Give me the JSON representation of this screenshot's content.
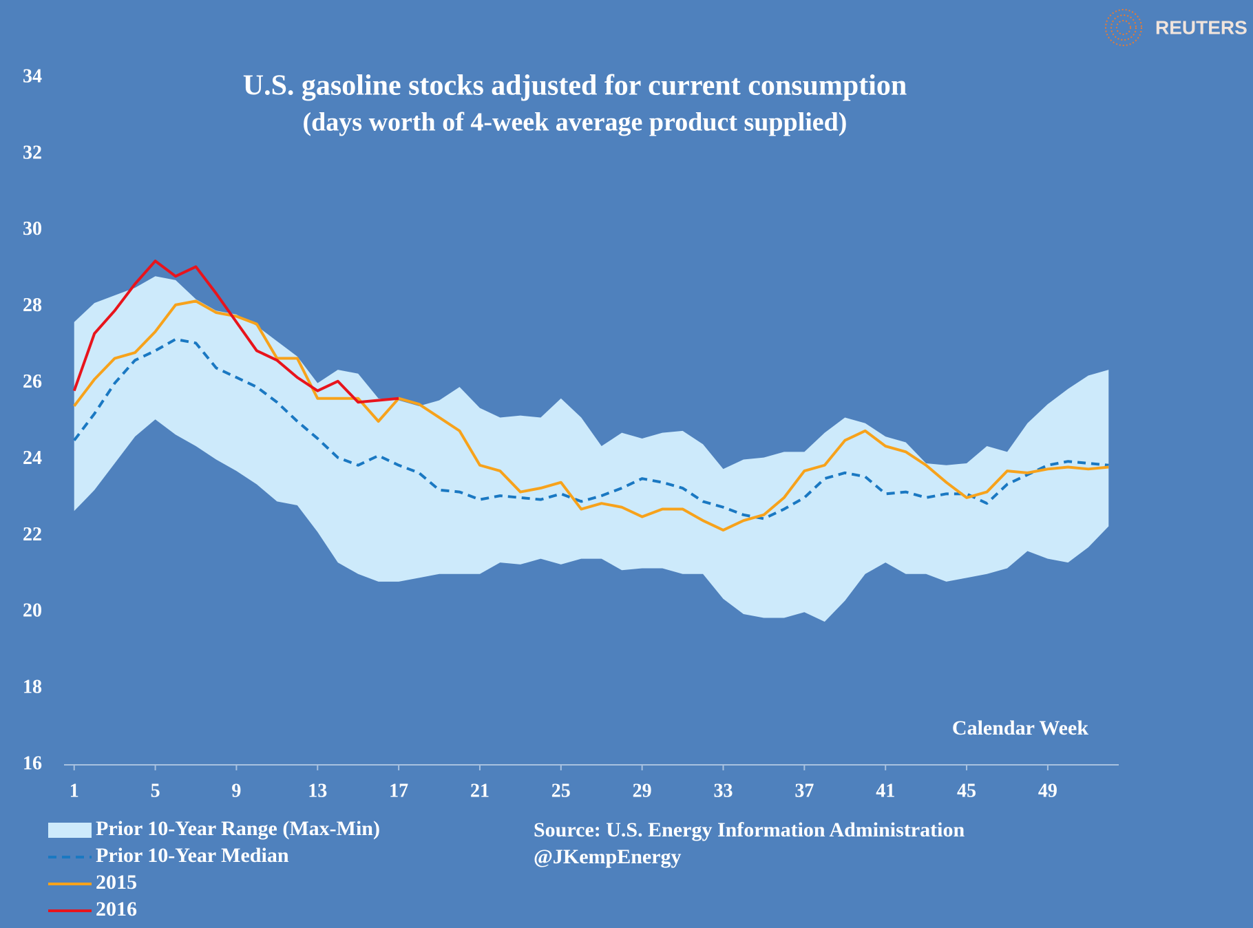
{
  "chart_data": {
    "type": "line",
    "title": "U.S. gasoline stocks adjusted for current consumption",
    "subtitle": "(days worth of  4-week average product supplied)",
    "x_label": "Calendar Week",
    "source": "Source:  U.S. Energy Information Administration",
    "credit": "@JKempEnergy",
    "logo": "REUTERS",
    "x": [
      1,
      2,
      3,
      4,
      5,
      6,
      7,
      8,
      9,
      10,
      11,
      12,
      13,
      14,
      15,
      16,
      17,
      18,
      19,
      20,
      21,
      22,
      23,
      24,
      25,
      26,
      27,
      28,
      29,
      30,
      31,
      32,
      33,
      34,
      35,
      36,
      37,
      38,
      39,
      40,
      41,
      42,
      43,
      44,
      45,
      46,
      47,
      48,
      49,
      50,
      51,
      52
    ],
    "xlim": [
      0.5,
      52.5
    ],
    "xticks": [
      1,
      5,
      9,
      13,
      17,
      21,
      25,
      29,
      33,
      37,
      41,
      45,
      49
    ],
    "ylim": [
      16,
      34
    ],
    "yticks": [
      16,
      18,
      20,
      22,
      24,
      26,
      28,
      30,
      32,
      34
    ],
    "series": [
      {
        "name": "Prior 10-Year Range (Max-Min)",
        "kind": "band",
        "color": "#cdeafb",
        "high": [
          27.6,
          28.1,
          28.3,
          28.5,
          28.8,
          28.7,
          28.2,
          27.9,
          27.8,
          27.5,
          27.1,
          26.7,
          26.0,
          26.35,
          26.25,
          25.6,
          25.55,
          25.4,
          25.55,
          25.9,
          25.35,
          25.1,
          25.15,
          25.1,
          25.6,
          25.1,
          24.35,
          24.7,
          24.55,
          24.7,
          24.75,
          24.4,
          23.75,
          24.0,
          24.05,
          24.2,
          24.2,
          24.7,
          25.1,
          24.95,
          24.6,
          24.45,
          23.9,
          23.85,
          23.9,
          24.35,
          24.2,
          24.95,
          25.45,
          25.85,
          26.2,
          26.35
        ],
        "low": [
          22.65,
          23.2,
          23.9,
          24.6,
          25.05,
          24.65,
          24.35,
          24.0,
          23.7,
          23.35,
          22.9,
          22.8,
          22.1,
          21.3,
          21.0,
          20.8,
          20.8,
          20.9,
          21.0,
          21.0,
          21.0,
          21.3,
          21.25,
          21.4,
          21.25,
          21.4,
          21.4,
          21.1,
          21.15,
          21.15,
          21.0,
          21.0,
          20.35,
          19.95,
          19.85,
          19.85,
          20.0,
          19.75,
          20.3,
          21.0,
          21.3,
          21.0,
          21.0,
          20.8,
          20.9,
          21.0,
          21.15,
          21.6,
          21.4,
          21.3,
          21.7,
          22.25
        ]
      },
      {
        "name": "Prior 10-Year Median",
        "kind": "line",
        "dashed": true,
        "color": "#1a78c2",
        "values": [
          24.5,
          25.2,
          26.0,
          26.6,
          26.85,
          27.15,
          27.05,
          26.4,
          26.15,
          25.9,
          25.5,
          25.0,
          24.55,
          24.05,
          23.85,
          24.1,
          23.85,
          23.65,
          23.2,
          23.15,
          22.95,
          23.05,
          23.0,
          22.95,
          23.1,
          22.9,
          23.05,
          23.25,
          23.5,
          23.4,
          23.25,
          22.9,
          22.75,
          22.55,
          22.45,
          22.7,
          23.0,
          23.5,
          23.65,
          23.55,
          23.1,
          23.15,
          23.0,
          23.1,
          23.1,
          22.85,
          23.35,
          23.6,
          23.85,
          23.95,
          23.9,
          23.85
        ]
      },
      {
        "name": "2015",
        "kind": "line",
        "color": "#f7a21b",
        "values": [
          25.4,
          26.1,
          26.65,
          26.8,
          27.35,
          28.05,
          28.15,
          27.85,
          27.75,
          27.55,
          26.65,
          26.65,
          25.6,
          25.6,
          25.6,
          25.0,
          25.6,
          25.45,
          25.1,
          24.75,
          23.85,
          23.7,
          23.15,
          23.25,
          23.4,
          22.7,
          22.85,
          22.75,
          22.5,
          22.7,
          22.7,
          22.4,
          22.15,
          22.4,
          22.55,
          23.0,
          23.7,
          23.85,
          24.5,
          24.75,
          24.35,
          24.2,
          23.85,
          23.4,
          23.0,
          23.15,
          23.7,
          23.65,
          23.75,
          23.8,
          23.75,
          23.8
        ]
      },
      {
        "name": "2016",
        "kind": "line",
        "color": "#e8141c",
        "values": [
          25.8,
          27.3,
          27.9,
          28.6,
          29.2,
          28.8,
          29.05,
          28.35,
          27.6,
          26.85,
          26.6,
          26.15,
          25.8,
          26.05,
          25.5,
          25.55,
          25.6,
          null,
          null,
          null,
          null,
          null,
          null,
          null,
          null,
          null,
          null,
          null,
          null,
          null,
          null,
          null,
          null,
          null,
          null,
          null,
          null,
          null,
          null,
          null,
          null,
          null,
          null,
          null,
          null,
          null,
          null,
          null,
          null,
          null,
          null,
          null
        ]
      }
    ]
  }
}
